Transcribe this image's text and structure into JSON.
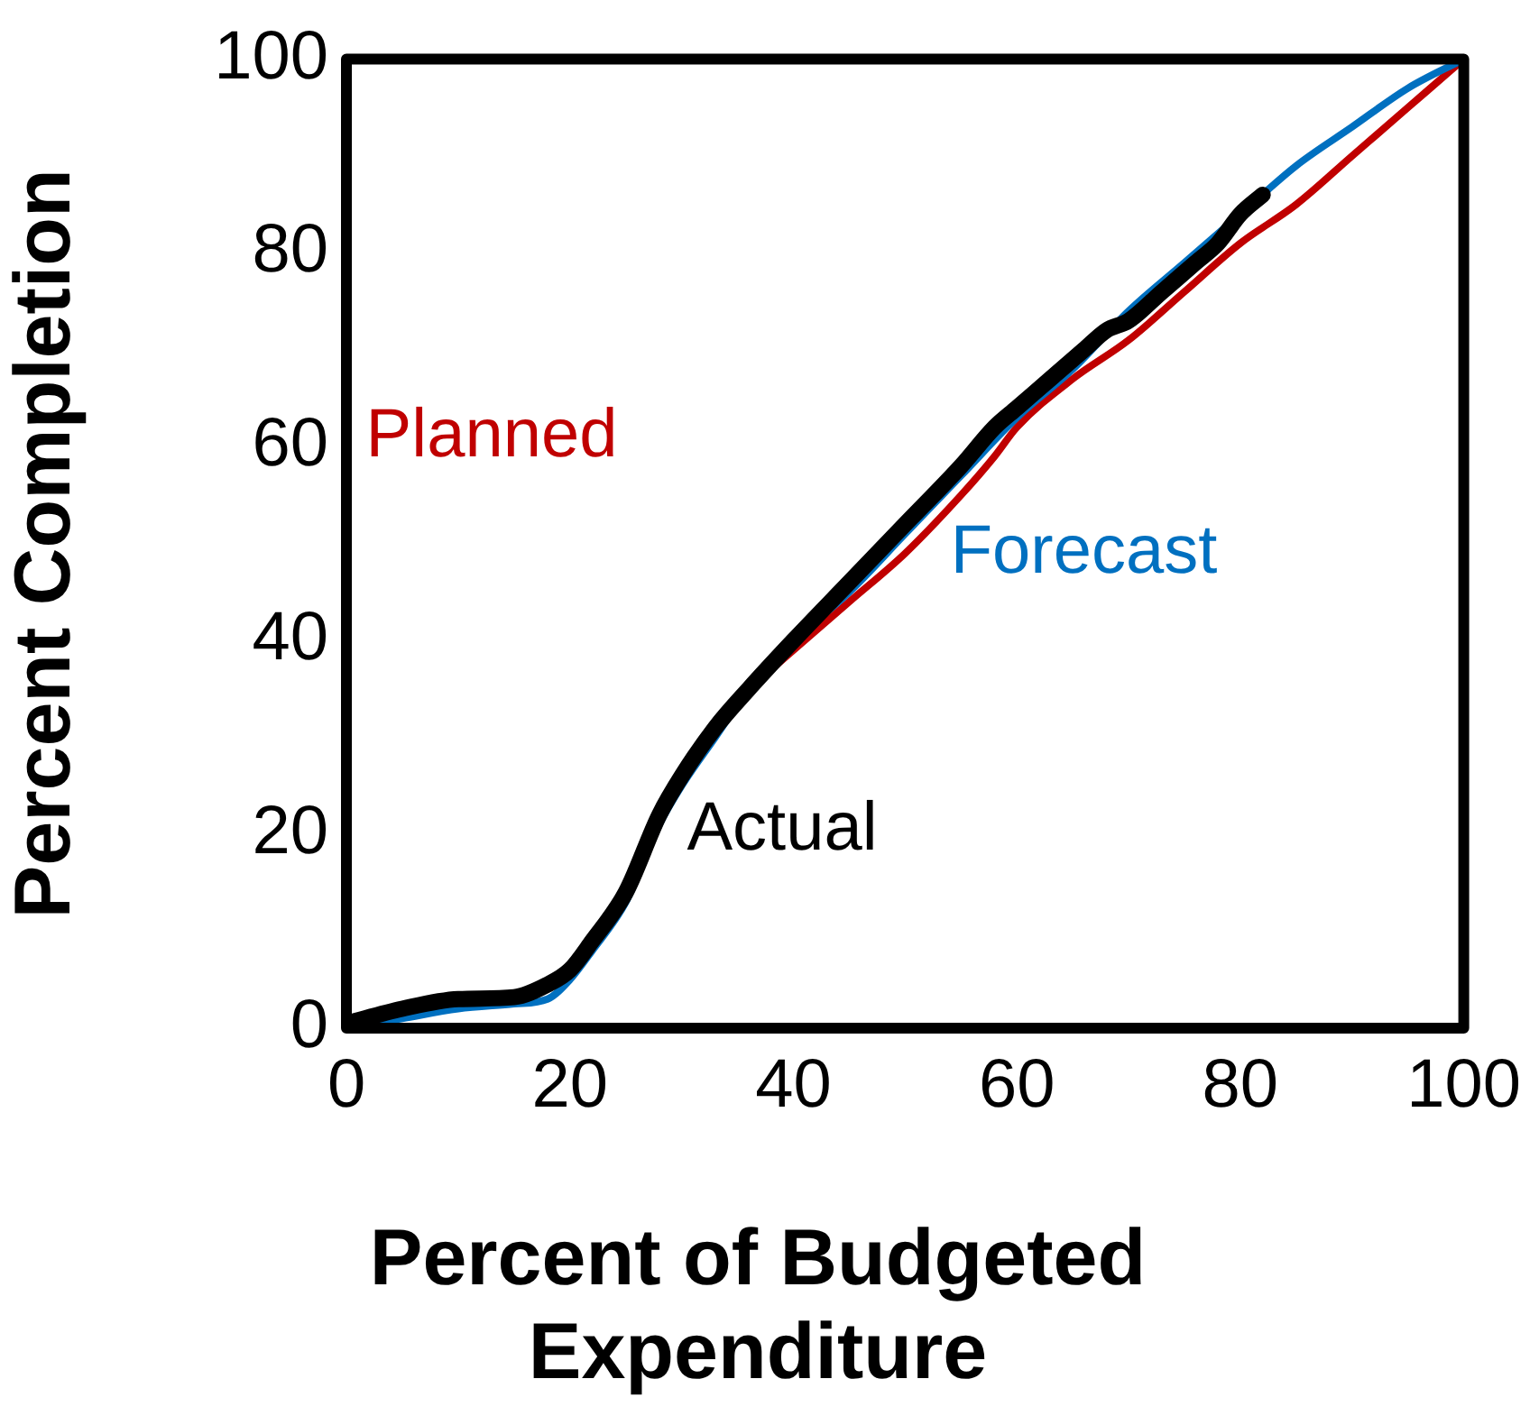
{
  "chart_data": {
    "type": "line",
    "xlabel": "Percent of Budgeted Expenditure",
    "ylabel": "Percent Completion",
    "xlim": [
      0,
      100
    ],
    "xticks": [
      0,
      20,
      40,
      60,
      80,
      100
    ],
    "ylim": [
      0,
      100
    ],
    "yticks": [
      0,
      20,
      40,
      60,
      80,
      100
    ],
    "grid": false,
    "legend": false,
    "marker": "none",
    "line_style": "solid",
    "series": [
      {
        "name": "Planned",
        "color": "#c00000",
        "x": [
          36,
          40,
          45,
          50,
          55,
          58,
          60,
          65,
          70,
          75,
          80,
          85,
          90,
          95,
          100
        ],
        "values": [
          35,
          39,
          44,
          49,
          55,
          59,
          62,
          67,
          71,
          76,
          81,
          85,
          90,
          95,
          100
        ]
      },
      {
        "name": "Forecast",
        "color": "#0070c0",
        "x": [
          0,
          5,
          10,
          15,
          18,
          20,
          22,
          25,
          28,
          30,
          33,
          36,
          40,
          45,
          50,
          55,
          60,
          65,
          70,
          75,
          80,
          85,
          90,
          95,
          100
        ],
        "values": [
          0,
          1,
          2,
          2.5,
          3,
          5,
          8,
          13,
          21,
          25,
          30,
          35,
          40,
          45,
          51,
          57,
          63,
          68,
          74,
          79,
          84,
          89,
          93,
          97,
          100
        ]
      },
      {
        "name": "Actual",
        "color": "#000000",
        "x": [
          0,
          5,
          10,
          15,
          18,
          20,
          22,
          25,
          28,
          30,
          33,
          36,
          40,
          45,
          50,
          55,
          58,
          60,
          63,
          66,
          68,
          70,
          73,
          76,
          78,
          80,
          82
        ],
        "values": [
          0.5,
          2,
          3,
          3.2,
          4.5,
          6,
          9,
          14,
          22,
          26,
          31,
          35,
          40,
          46,
          52,
          58,
          62,
          64,
          67,
          70,
          72,
          73,
          76,
          79,
          81,
          84,
          86
        ]
      }
    ]
  }
}
